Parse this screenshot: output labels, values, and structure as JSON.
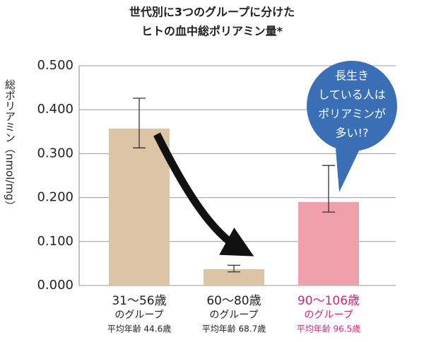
{
  "chart_data": {
    "type": "bar",
    "title": [
      "世代別に3つのグループに分けた",
      "ヒトの血中総ポリアミン量*"
    ],
    "y_label": "総ポリアミン（nmol/mg）",
    "categories": [
      "31〜56歳",
      "60〜80歳",
      "90〜106歳"
    ],
    "category_notes": [
      [
        "のグループ",
        "平均年齢 44.6歳"
      ],
      [
        "のグループ",
        "平均年齢 68.7歳"
      ],
      [
        "のグループ",
        "平均年齢 96.5歳"
      ]
    ],
    "label_colors": [
      "#222222",
      "#222222",
      "#d0267a"
    ],
    "series": [
      {
        "values": [
          0.357,
          0.037,
          0.19
        ],
        "upper": [
          0.426,
          0.046,
          0.273
        ],
        "lower": [
          0.313,
          0.031,
          0.167
        ],
        "colors": [
          "#dcc5a5",
          "#dcc5a5",
          "#f0a0aa"
        ]
      }
    ],
    "ylim": [
      0,
      0.5
    ],
    "yticks": [
      {
        "value": 0,
        "label": "0.000"
      },
      {
        "value": 0.1,
        "label": "0.100"
      },
      {
        "value": 0.2,
        "label": "0.200"
      },
      {
        "value": 0.3,
        "label": "0.300"
      },
      {
        "value": 0.4,
        "label": "0.400"
      },
      {
        "value": 0.5,
        "label": "0.500"
      }
    ],
    "grid": true,
    "annotation": [
      "長生き",
      "している人は",
      "ポリアミンが",
      "多い!?"
    ],
    "annotation_color": "#3a6fb5"
  }
}
